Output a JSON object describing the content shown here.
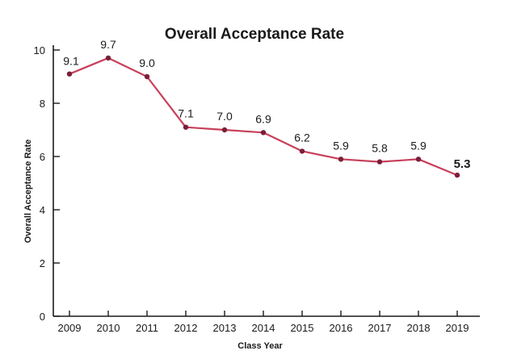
{
  "chart_data": {
    "type": "line",
    "title": "Overall Acceptance Rate",
    "xlabel": "Class Year",
    "ylabel": "Overall Acceptance Rate",
    "categories": [
      "2009",
      "2010",
      "2011",
      "2012",
      "2013",
      "2014",
      "2015",
      "2016",
      "2017",
      "2018",
      "2019"
    ],
    "series": [
      {
        "values": [
          9.1,
          9.7,
          9.0,
          7.1,
          7.0,
          6.9,
          6.2,
          5.9,
          5.8,
          5.9,
          5.3
        ],
        "labels": [
          "9.1",
          "9.7",
          "9.0",
          "7.1",
          "7.0",
          "6.9",
          "6.2",
          "5.9",
          "5.8",
          "5.9",
          "5.3"
        ],
        "emphasized_index": 10
      }
    ],
    "ylim": [
      0,
      10
    ],
    "yticks": [
      "0",
      "2",
      "4",
      "6",
      "8",
      "10"
    ],
    "grid": false,
    "legend": "none",
    "colors": {
      "line": "#c8405a",
      "marker": "#7a1f3a",
      "axis": "#1a1a1a"
    }
  }
}
